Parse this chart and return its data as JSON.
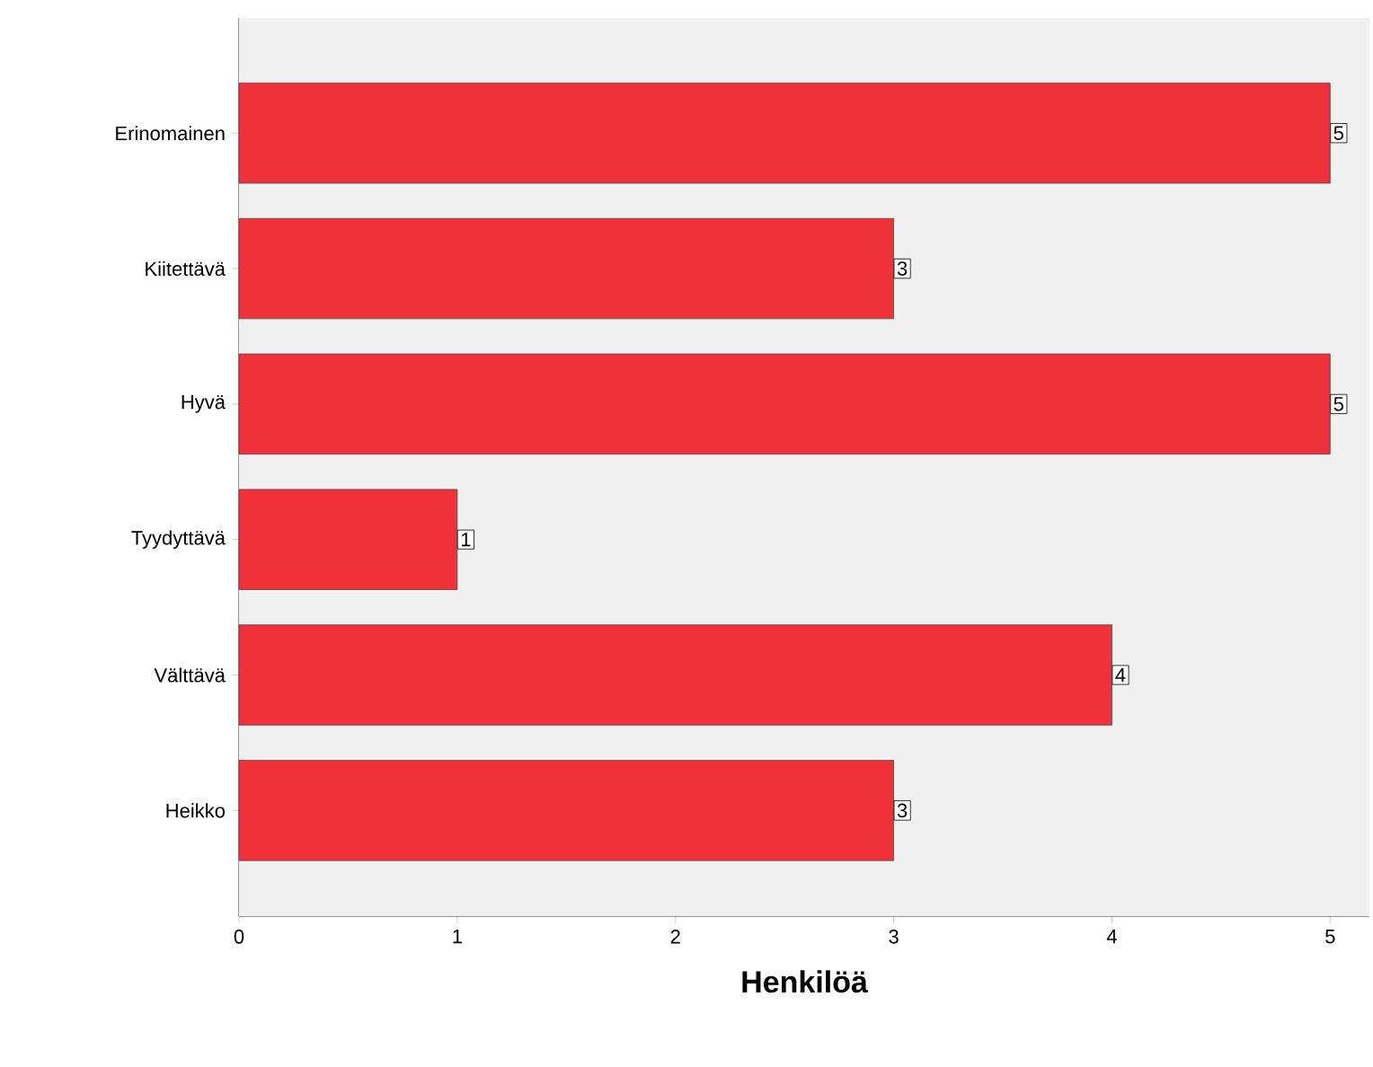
{
  "chart_data": {
    "type": "bar",
    "orientation": "horizontal",
    "xlabel": "Henkilöä",
    "categories": [
      "Erinomainen",
      "Kiitettävä",
      "Hyvä",
      "Tyydyttävä",
      "Välttävä",
      "Heikko"
    ],
    "values": [
      5,
      3,
      5,
      1,
      4,
      3
    ],
    "color": "#f0313a",
    "xlim": [
      0,
      5.18
    ],
    "xticks": [
      0,
      1,
      2,
      3,
      4,
      5
    ],
    "data_labels": true
  }
}
